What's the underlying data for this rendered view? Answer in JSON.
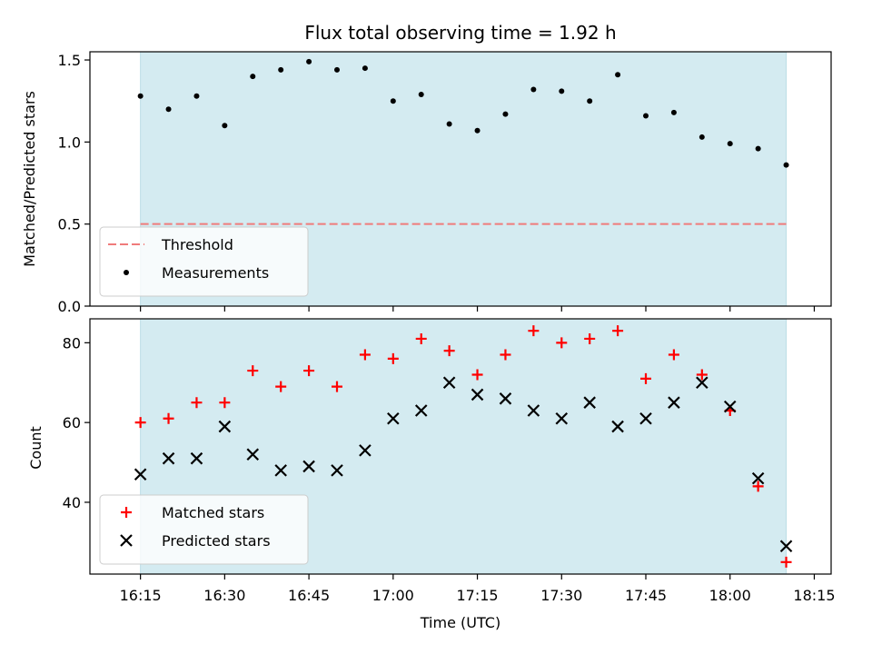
{
  "chart_data": [
    {
      "type": "scatter",
      "panel": "top",
      "title": "Flux total observing time = 1.92 h",
      "xlabel": "",
      "ylabel": "Matched/Predicted stars",
      "ylim": [
        0,
        1.55
      ],
      "yticks": [
        "0.0",
        "0.5",
        "1.0",
        "1.5"
      ],
      "ytick_values": [
        0,
        0.5,
        1.0,
        1.5
      ],
      "x_time_range": [
        "16:06",
        "18:18"
      ],
      "observing_span": [
        "16:15",
        "18:10"
      ],
      "observing_span_color": "#d4ebf1",
      "threshold": {
        "name": "Threshold",
        "value": 0.5,
        "color": "#f07b7b",
        "style": "dashed",
        "x_range": [
          "16:15",
          "18:10"
        ]
      },
      "series": [
        {
          "name": "Measurements",
          "color": "#000000",
          "marker": "dot",
          "x": [
            "16:15",
            "16:20",
            "16:25",
            "16:30",
            "16:35",
            "16:40",
            "16:45",
            "16:50",
            "16:55",
            "17:00",
            "17:05",
            "17:10",
            "17:15",
            "17:20",
            "17:25",
            "17:30",
            "17:35",
            "17:40",
            "17:45",
            "17:50",
            "17:55",
            "18:00",
            "18:05",
            "18:10"
          ],
          "values": [
            1.28,
            1.2,
            1.28,
            1.1,
            1.4,
            1.44,
            1.49,
            1.44,
            1.45,
            1.25,
            1.29,
            1.11,
            1.07,
            1.17,
            1.32,
            1.31,
            1.25,
            1.41,
            1.16,
            1.18,
            1.03,
            0.99,
            0.96,
            0.86
          ]
        }
      ],
      "legend": {
        "placement": "lower-left",
        "entries": [
          "Threshold",
          "Measurements"
        ]
      },
      "grid": false
    },
    {
      "type": "scatter",
      "panel": "bottom",
      "title": "",
      "xlabel": "Time (UTC)",
      "ylabel": "Count",
      "ylim": [
        22,
        86
      ],
      "yticks": [
        "40",
        "60",
        "80"
      ],
      "ytick_values": [
        40,
        60,
        80
      ],
      "xticks": [
        "16:15",
        "16:30",
        "16:45",
        "17:00",
        "17:15",
        "17:30",
        "17:45",
        "18:00",
        "18:15"
      ],
      "x_time_range": [
        "16:06",
        "18:18"
      ],
      "observing_span": [
        "16:15",
        "18:10"
      ],
      "observing_span_color": "#d4ebf1",
      "series": [
        {
          "name": "Matched stars",
          "color": "#ff0000",
          "marker": "plus",
          "x": [
            "16:15",
            "16:20",
            "16:25",
            "16:30",
            "16:35",
            "16:40",
            "16:45",
            "16:50",
            "16:55",
            "17:00",
            "17:05",
            "17:10",
            "17:15",
            "17:20",
            "17:25",
            "17:30",
            "17:35",
            "17:40",
            "17:45",
            "17:50",
            "17:55",
            "18:00",
            "18:05",
            "18:10"
          ],
          "values": [
            60,
            61,
            65,
            65,
            73,
            69,
            73,
            69,
            77,
            76,
            81,
            78,
            72,
            77,
            83,
            80,
            81,
            83,
            71,
            77,
            72,
            63,
            44,
            25
          ]
        },
        {
          "name": "Predicted stars",
          "color": "#000000",
          "marker": "x",
          "x": [
            "16:15",
            "16:20",
            "16:25",
            "16:30",
            "16:35",
            "16:40",
            "16:45",
            "16:50",
            "16:55",
            "17:00",
            "17:05",
            "17:10",
            "17:15",
            "17:20",
            "17:25",
            "17:30",
            "17:35",
            "17:40",
            "17:45",
            "17:50",
            "17:55",
            "18:00",
            "18:05",
            "18:10"
          ],
          "values": [
            47,
            51,
            51,
            59,
            52,
            48,
            49,
            48,
            53,
            61,
            63,
            70,
            67,
            66,
            63,
            61,
            65,
            59,
            61,
            65,
            70,
            64,
            46,
            29
          ]
        }
      ],
      "legend": {
        "placement": "lower-left",
        "entries": [
          "Matched stars",
          "Predicted stars"
        ]
      },
      "grid": false
    }
  ]
}
